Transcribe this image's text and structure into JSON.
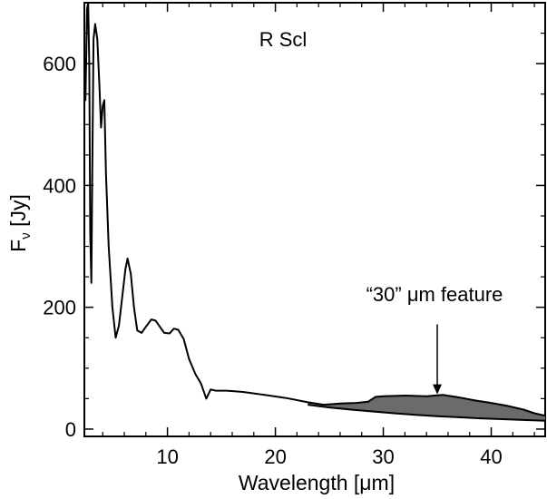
{
  "chart_data": {
    "type": "line",
    "title": "R Scl",
    "xlabel": "Wavelength [μm]",
    "ylabel": "Fν [Jy]",
    "ylabel_main": "F",
    "ylabel_sub": "ν",
    "ylabel_unit": " [Jy]",
    "xlim": [
      2.3,
      45
    ],
    "ylim": [
      -12,
      700
    ],
    "xticks": [
      10,
      20,
      30,
      40
    ],
    "yticks": [
      0,
      200,
      400,
      600
    ],
    "grid": false,
    "annotation": {
      "text": "“30” μm feature",
      "arrow_x": 35,
      "arrow_y_from": 172,
      "arrow_y_to": 57
    },
    "colors": {
      "line": "#000000",
      "fill": "#6b6b6b"
    },
    "series": [
      {
        "role": "spectrum",
        "points": [
          [
            2.3,
            580
          ],
          [
            2.4,
            540
          ],
          [
            2.55,
            690
          ],
          [
            2.65,
            700
          ],
          [
            2.75,
            600
          ],
          [
            2.85,
            320
          ],
          [
            2.95,
            240
          ],
          [
            3.05,
            450
          ],
          [
            3.15,
            640
          ],
          [
            3.3,
            665
          ],
          [
            3.5,
            640
          ],
          [
            3.7,
            560
          ],
          [
            3.85,
            495
          ],
          [
            4.0,
            530
          ],
          [
            4.15,
            540
          ],
          [
            4.3,
            420
          ],
          [
            4.55,
            300
          ],
          [
            4.9,
            200
          ],
          [
            5.2,
            150
          ],
          [
            5.5,
            170
          ],
          [
            5.8,
            215
          ],
          [
            6.1,
            262
          ],
          [
            6.3,
            280
          ],
          [
            6.6,
            255
          ],
          [
            6.9,
            200
          ],
          [
            7.2,
            162
          ],
          [
            7.6,
            158
          ],
          [
            8.0,
            168
          ],
          [
            8.5,
            180
          ],
          [
            8.9,
            178
          ],
          [
            9.3,
            168
          ],
          [
            9.7,
            158
          ],
          [
            10.2,
            157
          ],
          [
            10.6,
            165
          ],
          [
            11.0,
            163
          ],
          [
            11.5,
            148
          ],
          [
            12.0,
            115
          ],
          [
            12.6,
            90
          ],
          [
            13.1,
            75
          ],
          [
            13.6,
            50
          ],
          [
            14.0,
            65
          ],
          [
            14.5,
            63
          ],
          [
            15.5,
            63
          ],
          [
            17.0,
            61
          ],
          [
            19.0,
            56
          ],
          [
            21.0,
            51
          ],
          [
            23.0,
            44
          ],
          [
            24.5,
            40
          ],
          [
            26.0,
            42
          ],
          [
            27.5,
            43
          ],
          [
            28.6,
            45
          ],
          [
            29.3,
            53
          ],
          [
            30.0,
            54
          ],
          [
            32.0,
            55
          ],
          [
            34.0,
            54
          ],
          [
            35.5,
            56
          ],
          [
            37.0,
            52
          ],
          [
            38.5,
            47
          ],
          [
            40.0,
            43
          ],
          [
            41.5,
            38
          ],
          [
            43.0,
            32
          ],
          [
            44.0,
            26
          ],
          [
            45.0,
            22
          ]
        ]
      },
      {
        "role": "continuum",
        "points": [
          [
            23.0,
            40
          ],
          [
            25.0,
            35.5
          ],
          [
            27.0,
            32
          ],
          [
            29.0,
            29
          ],
          [
            31.0,
            26
          ],
          [
            33.0,
            23.3
          ],
          [
            35.0,
            21.2
          ],
          [
            37.0,
            19.4
          ],
          [
            39.0,
            17.7
          ],
          [
            41.0,
            16.3
          ],
          [
            43.0,
            15.0
          ],
          [
            45.0,
            13.8
          ]
        ]
      }
    ]
  }
}
